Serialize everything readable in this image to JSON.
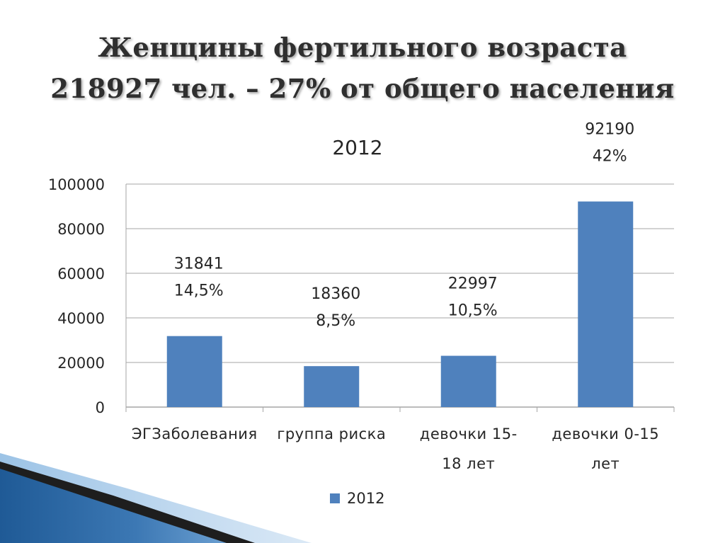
{
  "slide": {
    "title_line1": "Женщины фертильного возраста",
    "title_line2": "218927 чел. – 27% от общего населения"
  },
  "chart_data": {
    "type": "bar",
    "title": "2012",
    "categories": [
      [
        "ЭГЗаболевания"
      ],
      [
        "группа риска"
      ],
      [
        "девочки 15-",
        "18 лет"
      ],
      [
        "девочки 0-15",
        "лет"
      ]
    ],
    "series": [
      {
        "name": "2012",
        "values": [
          31841,
          18360,
          22997,
          92190
        ],
        "color": "#4f81bd"
      }
    ],
    "data_labels": [
      {
        "value": "31841",
        "percent": "14,5%"
      },
      {
        "value": "18360",
        "percent": "8,5%"
      },
      {
        "value": "22997",
        "percent": "10,5%"
      },
      {
        "value": "92190",
        "percent": "42%"
      }
    ],
    "ylim": [
      0,
      100000
    ],
    "yticks": [
      "0",
      "20000",
      "40000",
      "60000",
      "80000",
      "100000"
    ],
    "grid": true,
    "legend": "bottom",
    "xlabel": "",
    "ylabel": ""
  },
  "colors": {
    "bar": "#4f81bd",
    "grid": "#a6a6a6",
    "text": "#262626",
    "decoration_dark": "#1f4e79",
    "decoration_light": "#bdd7ee"
  }
}
